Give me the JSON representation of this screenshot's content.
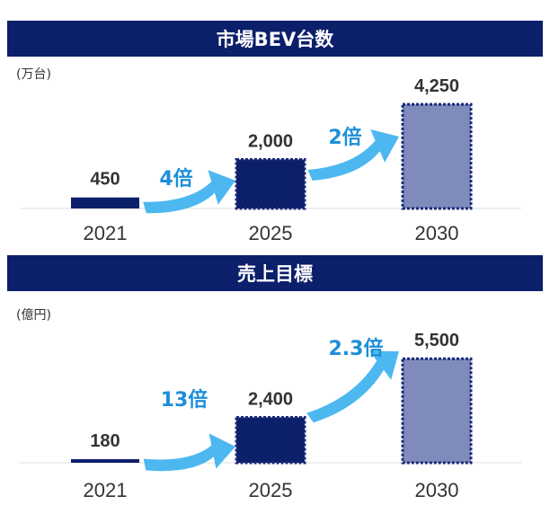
{
  "colors": {
    "banner": "#0c1f6b",
    "bar_dark": "#0c1f6b",
    "bar_light": "#7f8bbb",
    "bar_border": "#1a2a7a",
    "arrow": "#4db8f0",
    "multiplier_text": "#1d8fd8"
  },
  "chart_data": [
    {
      "type": "bar",
      "title": "市場BEV台数",
      "ylabel": "(万台)",
      "categories": [
        "2021",
        "2025",
        "2030"
      ],
      "values": [
        450,
        2000,
        4250
      ],
      "value_labels": [
        "450",
        "2,000",
        "4,250"
      ],
      "growth": [
        {
          "from": "2021",
          "to": "2025",
          "label": "4倍"
        },
        {
          "from": "2025",
          "to": "2030",
          "label": "2倍"
        }
      ],
      "bar_styles": [
        "solid-dark",
        "dotted-dark",
        "dotted-light"
      ],
      "ylim": [
        0,
        4400
      ],
      "grid": false
    },
    {
      "type": "bar",
      "title": "売上目標",
      "ylabel": "(億円)",
      "categories": [
        "2021",
        "2025",
        "2030"
      ],
      "values": [
        180,
        2400,
        5500
      ],
      "value_labels": [
        "180",
        "2,400",
        "5,500"
      ],
      "growth": [
        {
          "from": "2021",
          "to": "2025",
          "label": "13倍"
        },
        {
          "from": "2025",
          "to": "2030",
          "label": "2.3倍"
        }
      ],
      "bar_styles": [
        "solid-dark",
        "dotted-dark",
        "dotted-light"
      ],
      "ylim": [
        0,
        5700
      ],
      "grid": false
    }
  ]
}
